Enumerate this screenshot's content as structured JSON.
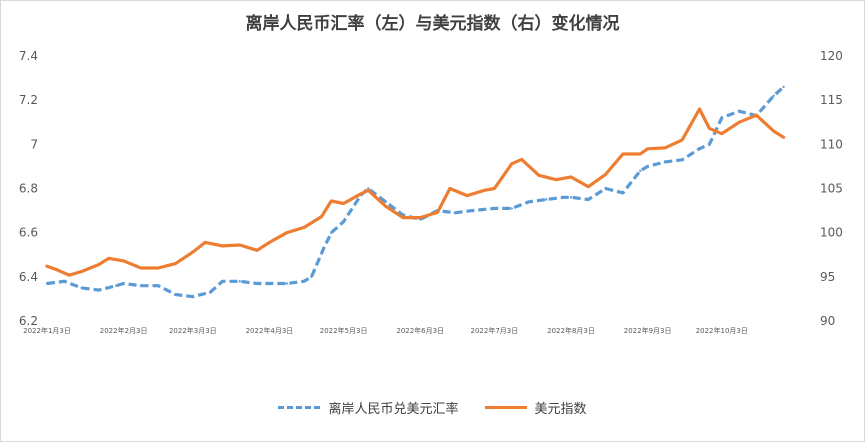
{
  "chart_data": {
    "type": "line",
    "title": "离岸人民币汇率（左）与美元指数（右）变化情况",
    "x_tick_labels": [
      "2022年1月3日",
      "2022年2月3日",
      "2022年3月3日",
      "2022年4月3日",
      "2022年5月3日",
      "2022年6月3日",
      "2022年7月3日",
      "2022年8月3日",
      "2022年9月3日",
      "2022年10月3日"
    ],
    "y_left": {
      "ticks": [
        "7.4",
        "7.2",
        "7",
        "6.8",
        "6.6",
        "6.4",
        "6.2"
      ],
      "min": 6.2,
      "max": 7.4
    },
    "y_right": {
      "ticks": [
        "120",
        "115",
        "110",
        "105",
        "100",
        "95",
        "90"
      ],
      "min": 90,
      "max": 120
    },
    "grid": false,
    "legend_position": "bottom",
    "series": [
      {
        "name": "离岸人民币兑美元汇率",
        "axis": "left",
        "color": "#5b9bd5",
        "style": "dashed",
        "x": [
          "2022-01-03",
          "2022-01-10",
          "2022-01-17",
          "2022-01-24",
          "2022-01-31",
          "2022-02-03",
          "2022-02-10",
          "2022-02-17",
          "2022-02-24",
          "2022-03-03",
          "2022-03-10",
          "2022-03-15",
          "2022-03-22",
          "2022-03-29",
          "2022-04-03",
          "2022-04-10",
          "2022-04-17",
          "2022-04-20",
          "2022-04-25",
          "2022-04-28",
          "2022-05-03",
          "2022-05-10",
          "2022-05-13",
          "2022-05-20",
          "2022-05-27",
          "2022-06-03",
          "2022-06-10",
          "2022-06-17",
          "2022-06-24",
          "2022-07-03",
          "2022-07-10",
          "2022-07-17",
          "2022-07-24",
          "2022-07-31",
          "2022-08-03",
          "2022-08-10",
          "2022-08-17",
          "2022-08-24",
          "2022-08-31",
          "2022-09-03",
          "2022-09-10",
          "2022-09-17",
          "2022-09-24",
          "2022-09-28",
          "2022-10-03",
          "2022-10-10",
          "2022-10-17",
          "2022-10-24",
          "2022-10-28"
        ],
        "values": [
          6.37,
          6.38,
          6.35,
          6.34,
          6.36,
          6.37,
          6.36,
          6.36,
          6.32,
          6.31,
          6.33,
          6.38,
          6.38,
          6.37,
          6.37,
          6.37,
          6.38,
          6.4,
          6.53,
          6.6,
          6.65,
          6.77,
          6.8,
          6.74,
          6.68,
          6.66,
          6.7,
          6.69,
          6.7,
          6.71,
          6.71,
          6.74,
          6.75,
          6.76,
          6.76,
          6.75,
          6.8,
          6.78,
          6.88,
          6.9,
          6.92,
          6.93,
          6.98,
          7.0,
          7.12,
          7.15,
          7.13,
          7.22,
          7.26
        ]
      },
      {
        "name": "美元指数",
        "axis": "right",
        "color": "#ed7d31",
        "style": "solid",
        "x": [
          "2022-01-03",
          "2022-01-07",
          "2022-01-12",
          "2022-01-17",
          "2022-01-24",
          "2022-01-28",
          "2022-02-03",
          "2022-02-10",
          "2022-02-17",
          "2022-02-24",
          "2022-03-03",
          "2022-03-08",
          "2022-03-15",
          "2022-03-22",
          "2022-03-29",
          "2022-04-03",
          "2022-04-10",
          "2022-04-17",
          "2022-04-24",
          "2022-04-28",
          "2022-05-03",
          "2022-05-10",
          "2022-05-13",
          "2022-05-20",
          "2022-05-27",
          "2022-06-03",
          "2022-06-10",
          "2022-06-15",
          "2022-06-22",
          "2022-06-29",
          "2022-07-03",
          "2022-07-10",
          "2022-07-14",
          "2022-07-21",
          "2022-07-28",
          "2022-08-03",
          "2022-08-10",
          "2022-08-17",
          "2022-08-24",
          "2022-08-31",
          "2022-09-03",
          "2022-09-10",
          "2022-09-17",
          "2022-09-24",
          "2022-09-28",
          "2022-10-03",
          "2022-10-10",
          "2022-10-17",
          "2022-10-24",
          "2022-10-28"
        ],
        "values": [
          96.2,
          95.8,
          95.2,
          95.6,
          96.4,
          97.1,
          96.8,
          96.0,
          96.0,
          96.5,
          97.8,
          98.9,
          98.5,
          98.6,
          98.0,
          98.9,
          100.0,
          100.6,
          101.8,
          103.6,
          103.3,
          104.4,
          104.8,
          103.0,
          101.7,
          101.7,
          102.3,
          105.0,
          104.2,
          104.8,
          105.0,
          107.8,
          108.3,
          106.5,
          106.0,
          106.3,
          105.2,
          106.6,
          108.9,
          108.9,
          109.5,
          109.6,
          110.5,
          114.0,
          111.8,
          111.2,
          112.5,
          113.3,
          111.5,
          110.8
        ]
      }
    ]
  }
}
